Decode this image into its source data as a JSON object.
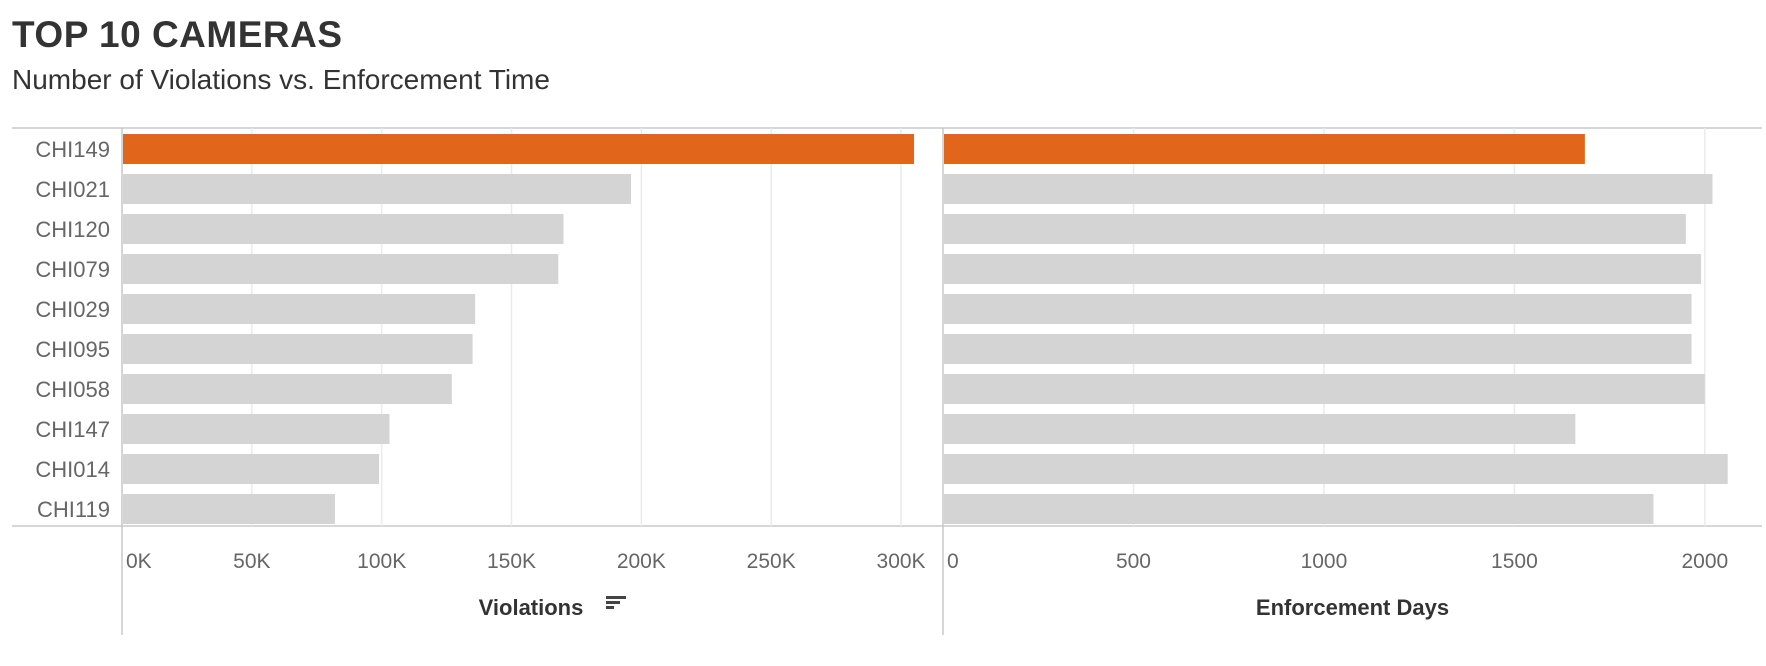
{
  "header": {
    "title": "TOP 10 CAMERAS",
    "subtitle": "Number of Violations vs. Enforcement Time"
  },
  "colors": {
    "highlight": "#e2651c",
    "bar": "#d4d4d4",
    "grid": "#ebebeb",
    "axis": "#c8c8c8"
  },
  "chart_data": [
    {
      "type": "bar",
      "orientation": "horizontal",
      "categories": [
        "CHI149",
        "CHI021",
        "CHI120",
        "CHI079",
        "CHI029",
        "CHI095",
        "CHI058",
        "CHI147",
        "CHI014",
        "CHI119"
      ],
      "values": [
        305000,
        196000,
        170000,
        168000,
        136000,
        135000,
        127000,
        103000,
        99000,
        82000
      ],
      "highlight": [
        "CHI149"
      ],
      "xlabel": "Violations",
      "sort_icon": "sort-descending-icon",
      "xlim": [
        0,
        315000
      ],
      "ticks": [
        0,
        50000,
        100000,
        150000,
        200000,
        250000,
        300000
      ],
      "tick_labels": [
        "0K",
        "50K",
        "100K",
        "150K",
        "200K",
        "250K",
        "300K"
      ],
      "grid": true
    },
    {
      "type": "bar",
      "orientation": "horizontal",
      "categories": [
        "CHI149",
        "CHI021",
        "CHI120",
        "CHI079",
        "CHI029",
        "CHI095",
        "CHI058",
        "CHI147",
        "CHI014",
        "CHI119"
      ],
      "values": [
        1685,
        2020,
        1950,
        1990,
        1965,
        1965,
        2000,
        1660,
        2060,
        1865
      ],
      "highlight": [
        "CHI149"
      ],
      "xlabel": "Enforcement Days",
      "xlim": [
        0,
        2150
      ],
      "ticks": [
        0,
        500,
        1000,
        1500,
        2000
      ],
      "tick_labels": [
        "0",
        "500",
        "1000",
        "1500",
        "2000"
      ],
      "grid": true
    }
  ]
}
